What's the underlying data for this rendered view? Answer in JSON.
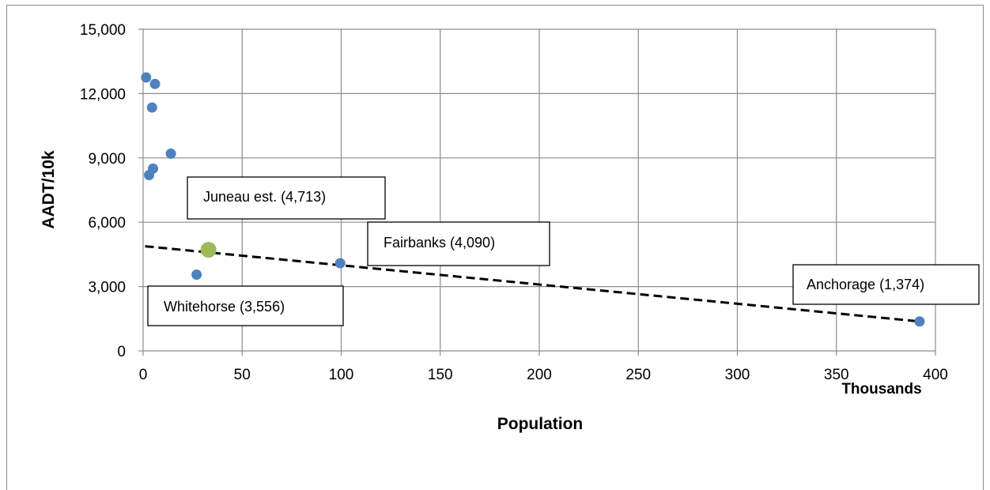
{
  "chart_data": {
    "type": "scatter",
    "xlabel": "Population",
    "x_units": "Thousands",
    "ylabel": "AADT/10k",
    "xlim": [
      0,
      400
    ],
    "ylim": [
      0,
      15000
    ],
    "xticks": [
      "0",
      "50",
      "100",
      "150",
      "200",
      "250",
      "300",
      "350",
      "400"
    ],
    "yticks": [
      "0",
      "3,000",
      "6,000",
      "9,000",
      "12,000",
      "15,000"
    ],
    "grid": true,
    "points_color": "#4f81bd",
    "highlight_color": "#9bbb59",
    "series": [
      {
        "values": [
          {
            "x": 1.5,
            "y": 12750
          },
          {
            "x": 6,
            "y": 12450
          },
          {
            "x": 4.5,
            "y": 11350
          },
          {
            "x": 14,
            "y": 9200
          },
          {
            "x": 5,
            "y": 8500
          },
          {
            "x": 3,
            "y": 8200
          },
          {
            "x": 27,
            "y": 3556
          },
          {
            "x": 99.5,
            "y": 4090
          },
          {
            "x": 392,
            "y": 1374
          }
        ]
      },
      {
        "highlight": true,
        "values": [
          {
            "x": 33,
            "y": 4713
          }
        ]
      }
    ],
    "trendline": {
      "style": "dashed",
      "x": [
        1,
        392
      ],
      "y": [
        4880,
        1374
      ]
    },
    "annotations": [
      {
        "text": "Juneau est. (4,713)"
      },
      {
        "text": "Fairbanks (4,090)"
      },
      {
        "text": "Whitehorse (3,556)"
      },
      {
        "text": "Anchorage (1,374)"
      }
    ]
  }
}
